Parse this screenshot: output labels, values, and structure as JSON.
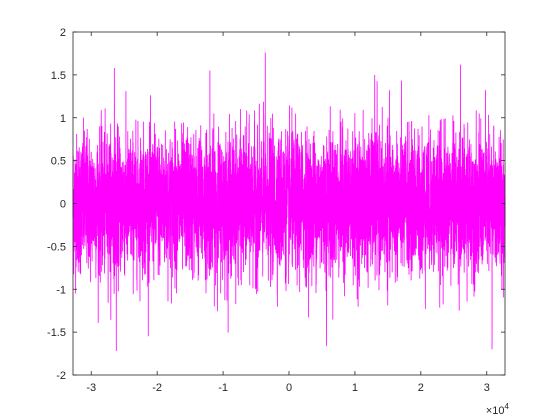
{
  "chart_data": {
    "type": "line",
    "title": "",
    "xlabel": "",
    "ylabel": "",
    "xlim": [
      -32768,
      32767
    ],
    "ylim": [
      -2,
      2
    ],
    "x_ticks": [
      -3,
      -2,
      -1,
      0,
      1,
      2,
      3
    ],
    "x_tick_labels": [
      "-3",
      "-2",
      "-1",
      "0",
      "1",
      "2",
      "3"
    ],
    "x_multiplier": "×10",
    "x_multiplier_exponent": "4",
    "y_ticks": [
      -2,
      -1.5,
      -1,
      -0.5,
      0,
      0.5,
      1,
      1.5,
      2
    ],
    "y_tick_labels": [
      "-2",
      "-1.5",
      "-1",
      "-0.5",
      "0",
      "0.5",
      "1",
      "1.5",
      "2"
    ],
    "grid": false,
    "series": [
      {
        "color": "#ff00ff",
        "description_stats": {
          "mean": 0.0,
          "std": 0.4,
          "min": -1.72,
          "max": 1.76,
          "n_points": 65536
        },
        "notable_peaks": [
          {
            "x": -26500,
            "y": 1.58
          },
          {
            "x": -3600,
            "y": 1.76
          },
          {
            "x": 26000,
            "y": 1.62
          },
          {
            "x": -26200,
            "y": -1.72
          },
          {
            "x": 5700,
            "y": -1.66
          },
          {
            "x": 30800,
            "y": -1.7
          },
          {
            "x": -12000,
            "y": 1.55
          },
          {
            "x": 13000,
            "y": 1.5
          }
        ]
      }
    ]
  }
}
